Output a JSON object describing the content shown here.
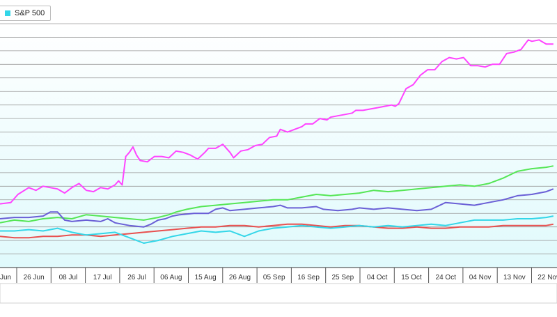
{
  "colors": {
    "sp500": "#33d6e8",
    "magenta": "#ff44ff",
    "green": "#55e655",
    "blue": "#6a5fd6",
    "red": "#e8504f",
    "plot_bg_top": "#ffffff",
    "plot_bg_bottom": "#e0fafc",
    "grid": "#9a9a9a"
  },
  "legend": [
    {
      "label": "S&P 500",
      "color": "#33d6e8"
    }
  ],
  "chart_data": {
    "type": "line",
    "title": "",
    "xlabel": "",
    "ylabel": "",
    "grid": true,
    "legend_position": "top-left",
    "x_ticks": [
      "Jun",
      "26 Jun",
      "08 Jul",
      "17 Jul",
      "26 Jul",
      "06 Aug",
      "15 Aug",
      "26 Aug",
      "05 Sep",
      "16 Sep",
      "25 Sep",
      "04 Oct",
      "15 Oct",
      "24 Oct",
      "04 Nov",
      "13 Nov",
      "22 Nov"
    ],
    "ylim": [
      0,
      18
    ],
    "series": [
      {
        "name": "",
        "color": "#ff44ff",
        "points": [
          [
            0,
            4.7
          ],
          [
            3,
            4.8
          ],
          [
            5,
            5.4
          ],
          [
            8,
            5.9
          ],
          [
            10,
            5.7
          ],
          [
            12,
            6.0
          ],
          [
            14,
            5.9
          ],
          [
            16,
            5.8
          ],
          [
            18,
            5.5
          ],
          [
            20,
            5.9
          ],
          [
            22,
            6.2
          ],
          [
            24,
            5.7
          ],
          [
            26,
            5.6
          ],
          [
            28,
            5.9
          ],
          [
            30,
            5.8
          ],
          [
            32,
            6.1
          ],
          [
            33,
            6.4
          ],
          [
            34,
            6.1
          ],
          [
            35,
            8.2
          ],
          [
            36,
            8.5
          ],
          [
            37,
            8.9
          ],
          [
            38,
            8.3
          ],
          [
            39,
            7.9
          ],
          [
            41,
            7.8
          ],
          [
            43,
            8.2
          ],
          [
            45,
            8.2
          ],
          [
            47,
            8.1
          ],
          [
            49,
            8.6
          ],
          [
            51,
            8.5
          ],
          [
            53,
            8.3
          ],
          [
            55,
            8.0
          ],
          [
            57,
            8.5
          ],
          [
            58,
            8.8
          ],
          [
            60,
            8.8
          ],
          [
            62,
            9.1
          ],
          [
            64,
            8.5
          ],
          [
            65,
            8.1
          ],
          [
            67,
            8.6
          ],
          [
            69,
            8.7
          ],
          [
            71,
            9.0
          ],
          [
            73,
            9.1
          ],
          [
            75,
            9.6
          ],
          [
            77,
            9.7
          ],
          [
            78,
            10.2
          ],
          [
            80,
            10.0
          ],
          [
            82,
            10.2
          ],
          [
            84,
            10.4
          ],
          [
            85,
            10.6
          ],
          [
            87,
            10.6
          ],
          [
            89,
            11.0
          ],
          [
            91,
            10.9
          ],
          [
            92,
            11.1
          ],
          [
            94,
            11.2
          ],
          [
            96,
            11.3
          ],
          [
            98,
            11.4
          ],
          [
            99,
            11.6
          ],
          [
            101,
            11.6
          ],
          [
            103,
            11.7
          ],
          [
            105,
            11.8
          ],
          [
            107,
            11.9
          ],
          [
            109,
            12.0
          ],
          [
            110,
            11.9
          ],
          [
            111,
            12.1
          ],
          [
            113,
            13.2
          ],
          [
            115,
            13.5
          ],
          [
            117,
            14.2
          ],
          [
            119,
            14.6
          ],
          [
            121,
            14.6
          ],
          [
            123,
            15.2
          ],
          [
            125,
            15.5
          ],
          [
            127,
            15.4
          ],
          [
            129,
            15.5
          ],
          [
            131,
            14.9
          ],
          [
            133,
            14.9
          ],
          [
            135,
            14.8
          ],
          [
            137,
            15.0
          ],
          [
            139,
            15.0
          ],
          [
            141,
            15.8
          ],
          [
            143,
            15.9
          ],
          [
            145,
            16.1
          ],
          [
            147,
            16.8
          ],
          [
            148,
            16.7
          ],
          [
            150,
            16.8
          ],
          [
            152,
            16.5
          ],
          [
            154,
            16.5
          ]
        ]
      },
      {
        "name": "",
        "color": "#55e655",
        "points": [
          [
            0,
            3.3
          ],
          [
            4,
            3.5
          ],
          [
            8,
            3.4
          ],
          [
            12,
            3.6
          ],
          [
            16,
            3.7
          ],
          [
            20,
            3.6
          ],
          [
            24,
            3.9
          ],
          [
            28,
            3.8
          ],
          [
            32,
            3.7
          ],
          [
            36,
            3.6
          ],
          [
            40,
            3.5
          ],
          [
            44,
            3.7
          ],
          [
            47,
            3.9
          ],
          [
            49,
            4.1
          ],
          [
            52,
            4.3
          ],
          [
            56,
            4.5
          ],
          [
            60,
            4.6
          ],
          [
            64,
            4.7
          ],
          [
            68,
            4.8
          ],
          [
            72,
            4.9
          ],
          [
            76,
            5.0
          ],
          [
            80,
            5.0
          ],
          [
            84,
            5.2
          ],
          [
            88,
            5.4
          ],
          [
            92,
            5.3
          ],
          [
            96,
            5.4
          ],
          [
            100,
            5.5
          ],
          [
            104,
            5.7
          ],
          [
            108,
            5.6
          ],
          [
            112,
            5.7
          ],
          [
            116,
            5.8
          ],
          [
            120,
            5.9
          ],
          [
            124,
            6.0
          ],
          [
            128,
            6.1
          ],
          [
            132,
            6.0
          ],
          [
            136,
            6.2
          ],
          [
            140,
            6.6
          ],
          [
            144,
            7.1
          ],
          [
            148,
            7.3
          ],
          [
            152,
            7.4
          ],
          [
            154,
            7.5
          ]
        ]
      },
      {
        "name": "",
        "color": "#6a5fd6",
        "points": [
          [
            0,
            3.6
          ],
          [
            4,
            3.7
          ],
          [
            8,
            3.7
          ],
          [
            12,
            3.8
          ],
          [
            14,
            4.1
          ],
          [
            16,
            4.1
          ],
          [
            18,
            3.5
          ],
          [
            20,
            3.4
          ],
          [
            24,
            3.5
          ],
          [
            28,
            3.4
          ],
          [
            30,
            3.6
          ],
          [
            32,
            3.3
          ],
          [
            36,
            3.1
          ],
          [
            40,
            3.0
          ],
          [
            42,
            3.2
          ],
          [
            44,
            3.5
          ],
          [
            46,
            3.6
          ],
          [
            48,
            3.8
          ],
          [
            50,
            3.9
          ],
          [
            54,
            4.0
          ],
          [
            58,
            4.0
          ],
          [
            60,
            4.3
          ],
          [
            62,
            4.4
          ],
          [
            64,
            4.2
          ],
          [
            68,
            4.3
          ],
          [
            72,
            4.4
          ],
          [
            76,
            4.5
          ],
          [
            78,
            4.6
          ],
          [
            80,
            4.4
          ],
          [
            84,
            4.4
          ],
          [
            88,
            4.5
          ],
          [
            90,
            4.3
          ],
          [
            94,
            4.2
          ],
          [
            98,
            4.3
          ],
          [
            100,
            4.4
          ],
          [
            104,
            4.3
          ],
          [
            108,
            4.4
          ],
          [
            112,
            4.3
          ],
          [
            116,
            4.2
          ],
          [
            120,
            4.3
          ],
          [
            124,
            4.8
          ],
          [
            128,
            4.7
          ],
          [
            132,
            4.6
          ],
          [
            136,
            4.8
          ],
          [
            140,
            5.0
          ],
          [
            144,
            5.3
          ],
          [
            148,
            5.4
          ],
          [
            152,
            5.6
          ],
          [
            154,
            5.8
          ]
        ]
      },
      {
        "name": "",
        "color": "#e8504f",
        "points": [
          [
            0,
            2.3
          ],
          [
            4,
            2.2
          ],
          [
            8,
            2.2
          ],
          [
            12,
            2.3
          ],
          [
            16,
            2.3
          ],
          [
            20,
            2.4
          ],
          [
            24,
            2.4
          ],
          [
            28,
            2.3
          ],
          [
            32,
            2.4
          ],
          [
            36,
            2.5
          ],
          [
            40,
            2.6
          ],
          [
            44,
            2.7
          ],
          [
            48,
            2.8
          ],
          [
            52,
            2.9
          ],
          [
            56,
            3.0
          ],
          [
            60,
            3.0
          ],
          [
            64,
            3.1
          ],
          [
            68,
            3.1
          ],
          [
            72,
            3.0
          ],
          [
            76,
            3.1
          ],
          [
            80,
            3.2
          ],
          [
            84,
            3.2
          ],
          [
            88,
            3.1
          ],
          [
            92,
            3.0
          ],
          [
            96,
            3.1
          ],
          [
            100,
            3.1
          ],
          [
            104,
            3.0
          ],
          [
            108,
            2.9
          ],
          [
            112,
            2.9
          ],
          [
            116,
            3.0
          ],
          [
            120,
            2.9
          ],
          [
            124,
            2.9
          ],
          [
            128,
            3.0
          ],
          [
            132,
            3.0
          ],
          [
            136,
            3.0
          ],
          [
            140,
            3.1
          ],
          [
            144,
            3.1
          ],
          [
            148,
            3.1
          ],
          [
            152,
            3.1
          ],
          [
            154,
            3.2
          ]
        ]
      },
      {
        "name": "S&P 500",
        "color": "#33d6e8",
        "points": [
          [
            0,
            2.7
          ],
          [
            4,
            2.7
          ],
          [
            8,
            2.8
          ],
          [
            12,
            2.7
          ],
          [
            16,
            2.9
          ],
          [
            20,
            2.6
          ],
          [
            24,
            2.4
          ],
          [
            28,
            2.5
          ],
          [
            32,
            2.6
          ],
          [
            36,
            2.2
          ],
          [
            40,
            1.8
          ],
          [
            44,
            2.0
          ],
          [
            48,
            2.3
          ],
          [
            52,
            2.5
          ],
          [
            56,
            2.7
          ],
          [
            60,
            2.6
          ],
          [
            64,
            2.7
          ],
          [
            68,
            2.3
          ],
          [
            72,
            2.7
          ],
          [
            76,
            2.9
          ],
          [
            80,
            3.0
          ],
          [
            84,
            3.1
          ],
          [
            88,
            3.0
          ],
          [
            92,
            2.9
          ],
          [
            96,
            3.0
          ],
          [
            100,
            3.1
          ],
          [
            104,
            3.0
          ],
          [
            108,
            3.1
          ],
          [
            112,
            3.0
          ],
          [
            116,
            3.1
          ],
          [
            120,
            3.2
          ],
          [
            124,
            3.1
          ],
          [
            128,
            3.3
          ],
          [
            132,
            3.5
          ],
          [
            136,
            3.5
          ],
          [
            140,
            3.5
          ],
          [
            144,
            3.6
          ],
          [
            148,
            3.6
          ],
          [
            152,
            3.7
          ],
          [
            154,
            3.8
          ]
        ]
      }
    ]
  }
}
